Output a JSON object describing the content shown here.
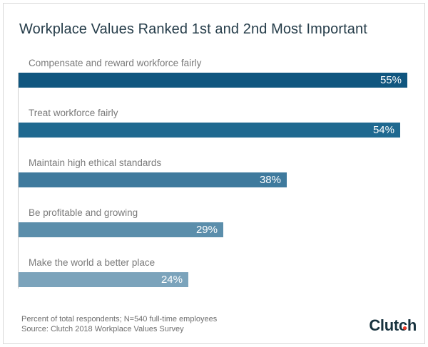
{
  "title": "Workplace Values Ranked 1st and 2nd Most Important",
  "chart_data": {
    "type": "bar",
    "orientation": "horizontal",
    "title": "Workplace Values Ranked 1st and 2nd Most Important",
    "categories": [
      "Compensate and reward workforce fairly",
      "Treat workforce fairly",
      "Maintain high ethical standards",
      "Be profitable and growing",
      "Make the world a better place"
    ],
    "values": [
      55,
      54,
      38,
      29,
      24
    ],
    "value_labels": [
      "55%",
      "54%",
      "38%",
      "29%",
      "24%"
    ],
    "bar_colors": [
      "#10567f",
      "#1f6990",
      "#3f7a9d",
      "#5b8eab",
      "#7ba3bb"
    ],
    "xlabel": "",
    "ylabel": "",
    "xlim": [
      0,
      57.6
    ],
    "grid": false,
    "legend": "none",
    "value_label_position": "inside-end",
    "value_label_color": "#ffffff"
  },
  "footer": {
    "note": "Percent of total respondents; N=540 full-time employees",
    "source": "Source: Clutch 2018 Workplace Values Survey"
  },
  "logo": {
    "text_pre": "Clut",
    "text_c": "c",
    "text_post": "h",
    "text_color": "#17323e",
    "dot_color": "#ee3524"
  }
}
